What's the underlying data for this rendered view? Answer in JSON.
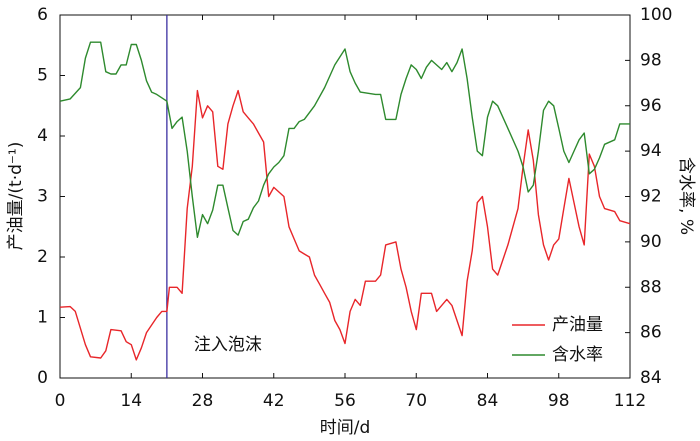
{
  "chart_data": {
    "type": "line",
    "x_label": "时间/d",
    "y_label": "产油量/(t·d⁻¹)",
    "y2_label": "含水率, %",
    "xlim": [
      0,
      112
    ],
    "xticks": [
      0,
      14,
      28,
      42,
      56,
      70,
      84,
      98,
      112
    ],
    "ylim": [
      0,
      6
    ],
    "yticks": [
      0,
      1,
      2,
      3,
      4,
      5,
      6
    ],
    "y2lim": [
      84,
      100
    ],
    "y2ticks": [
      84,
      86,
      88,
      90,
      92,
      94,
      96,
      98,
      100
    ],
    "legend": "lower right",
    "annotations": [
      {
        "text": "注入泡沫",
        "x": 21,
        "color": "#3b2fa0"
      }
    ],
    "series": [
      {
        "name": "产油量",
        "color": "#e8262a",
        "x": [
          0,
          2,
          3,
          5,
          6,
          8,
          9,
          10,
          12,
          13,
          14,
          15,
          16,
          17,
          19,
          20,
          21,
          21.5,
          23,
          24,
          25,
          26,
          27,
          28,
          29,
          30,
          31,
          32,
          33,
          34,
          35,
          36,
          37,
          38,
          39,
          40,
          41,
          42,
          44,
          45,
          46,
          47,
          48,
          49,
          50,
          51,
          52,
          53,
          54,
          55,
          56,
          57,
          58,
          59,
          60,
          62,
          63,
          64,
          66,
          67,
          68,
          69,
          70,
          71,
          73,
          74,
          75,
          76,
          77,
          78,
          79,
          80,
          81,
          82,
          83,
          84,
          85,
          86,
          88,
          90,
          91,
          92,
          93,
          94,
          95,
          96,
          97,
          98,
          99,
          100,
          101,
          102,
          103,
          104,
          105,
          106,
          107,
          109,
          110,
          112
        ],
        "values": [
          1.17,
          1.18,
          1.1,
          0.55,
          0.35,
          0.33,
          0.45,
          0.8,
          0.78,
          0.6,
          0.55,
          0.3,
          0.5,
          0.75,
          1.0,
          1.1,
          1.1,
          1.5,
          1.5,
          1.4,
          2.8,
          3.5,
          4.75,
          4.3,
          4.5,
          4.4,
          3.5,
          3.45,
          4.2,
          4.5,
          4.75,
          4.4,
          4.3,
          4.2,
          4.05,
          3.9,
          3.0,
          3.15,
          3.0,
          2.5,
          2.3,
          2.1,
          2.05,
          2.0,
          1.7,
          1.55,
          1.4,
          1.25,
          0.95,
          0.8,
          0.57,
          1.1,
          1.3,
          1.2,
          1.6,
          1.6,
          1.7,
          2.2,
          2.25,
          1.8,
          1.5,
          1.1,
          0.8,
          1.4,
          1.4,
          1.1,
          1.2,
          1.3,
          1.2,
          0.95,
          0.7,
          1.6,
          2.1,
          2.9,
          3.0,
          2.5,
          1.8,
          1.7,
          2.2,
          2.8,
          3.5,
          4.1,
          3.6,
          2.7,
          2.2,
          1.95,
          2.2,
          2.3,
          2.8,
          3.3,
          2.9,
          2.5,
          2.2,
          3.7,
          3.5,
          3.0,
          2.8,
          2.75,
          2.6,
          2.55
        ]
      },
      {
        "name": "含水率",
        "color": "#2e8a2e",
        "axis": "y2",
        "x": [
          0,
          2,
          4,
          5,
          6,
          8,
          9,
          10,
          11,
          12,
          13,
          14,
          15,
          16,
          17,
          18,
          19,
          21,
          22,
          23,
          24,
          25,
          26,
          27,
          28,
          29,
          30,
          31,
          32,
          33,
          34,
          35,
          36,
          37,
          38,
          39,
          40,
          41,
          42,
          43,
          44,
          45,
          46,
          47,
          48,
          50,
          52,
          54,
          56,
          57,
          58,
          59,
          62,
          63,
          64,
          66,
          67,
          68,
          69,
          70,
          71,
          72,
          73,
          75,
          76,
          77,
          78,
          79,
          80,
          81,
          82,
          83,
          84,
          85,
          86,
          88,
          90,
          91,
          92,
          93,
          94,
          95,
          96,
          97,
          98,
          99,
          100,
          101,
          102,
          103,
          104,
          105,
          106,
          107,
          109,
          110,
          112
        ],
        "values": [
          96.2,
          96.3,
          96.8,
          98.1,
          98.8,
          98.8,
          97.5,
          97.4,
          97.4,
          97.8,
          97.8,
          98.7,
          98.7,
          98.0,
          97.1,
          96.6,
          96.5,
          96.2,
          95.0,
          95.3,
          95.5,
          94.0,
          92.0,
          90.2,
          91.2,
          90.8,
          91.4,
          92.5,
          92.5,
          91.5,
          90.5,
          90.3,
          90.9,
          91.0,
          91.5,
          91.8,
          92.5,
          93.0,
          93.3,
          93.5,
          93.8,
          95.0,
          95.0,
          95.3,
          95.4,
          96.0,
          96.8,
          97.8,
          98.5,
          97.5,
          97.0,
          96.6,
          96.5,
          96.5,
          95.4,
          95.4,
          96.5,
          97.2,
          97.8,
          97.6,
          97.2,
          97.7,
          98.0,
          97.6,
          97.9,
          97.5,
          97.9,
          98.5,
          97.2,
          95.5,
          94.0,
          93.8,
          95.5,
          96.2,
          96.0,
          95.0,
          94.0,
          93.3,
          92.2,
          92.5,
          94.0,
          95.8,
          96.2,
          96.0,
          95.0,
          94.0,
          93.5,
          94.0,
          94.5,
          94.8,
          93.0,
          93.2,
          93.7,
          94.3,
          94.5,
          95.2,
          95.2
        ]
      }
    ]
  }
}
